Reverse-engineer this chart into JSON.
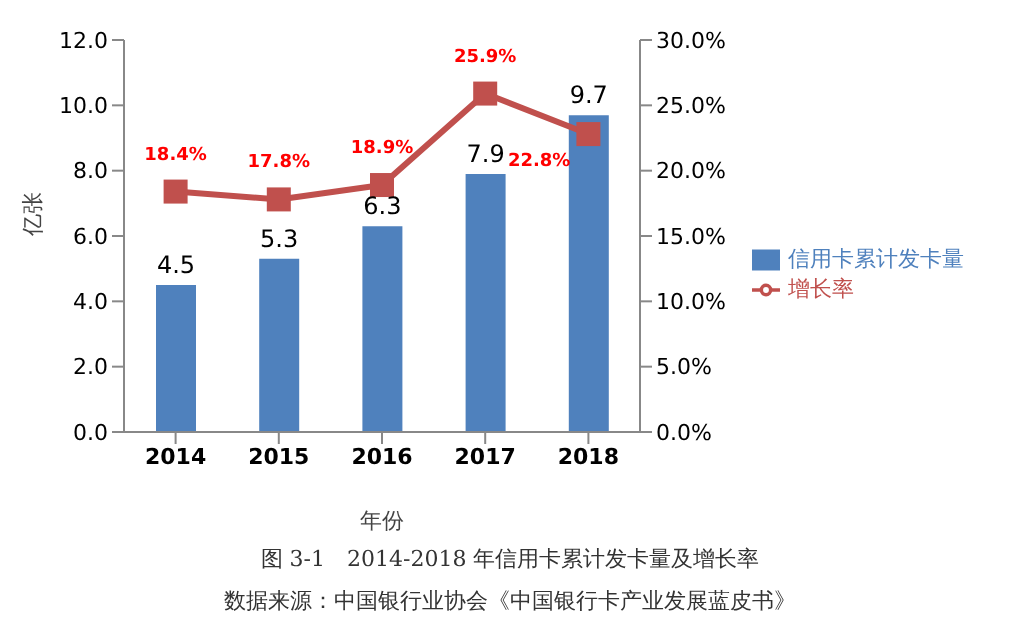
{
  "chart_data": {
    "type": "bar",
    "title": "图 3-1　2014-2018 年信用卡累计发卡量及增长率",
    "xlabel": "年份",
    "ylabel": "亿张",
    "annotations": [
      "数据来源：中国银行业协会《中国银行卡产业发展蓝皮书》"
    ],
    "categories": [
      "2014",
      "2015",
      "2016",
      "2017",
      "2018"
    ],
    "series": [
      {
        "name": "信用卡累计发卡量",
        "color": "#4f81bd",
        "values": [
          4.5,
          5.3,
          6.3,
          7.9,
          9.7
        ],
        "value_labels": [
          "4.5",
          "5.3",
          "6.3",
          "7.9",
          "9.7"
        ]
      },
      {
        "name": "增长率",
        "type": "line",
        "axis": "y2",
        "color": "#c0504d",
        "values": [
          18.4,
          17.8,
          18.9,
          25.9,
          22.8
        ],
        "value_labels": [
          "18.4%",
          "17.8%",
          "18.9%",
          "25.9%",
          "22.8%"
        ]
      }
    ],
    "ylim": [
      0,
      12
    ],
    "yticks": [
      {
        "value": 0,
        "label": "0.0"
      },
      {
        "value": 2,
        "label": "2.0"
      },
      {
        "value": 4,
        "label": "4.0"
      },
      {
        "value": 6,
        "label": "6.0"
      },
      {
        "value": 8,
        "label": "8.0"
      },
      {
        "value": 10,
        "label": "10.0"
      },
      {
        "value": 12,
        "label": "12.0"
      }
    ],
    "y2lim": [
      0,
      30
    ],
    "y2ticks": [
      {
        "value": 0,
        "label": "0.0%"
      },
      {
        "value": 5,
        "label": "5.0%"
      },
      {
        "value": 10,
        "label": "10.0%"
      },
      {
        "value": 15,
        "label": "15.0%"
      },
      {
        "value": 20,
        "label": "20.0%"
      },
      {
        "value": 25,
        "label": "25.0%"
      },
      {
        "value": 30,
        "label": "30.0%"
      }
    ],
    "grid": false,
    "legend": "right",
    "marker": "square",
    "line_style": "solid"
  }
}
